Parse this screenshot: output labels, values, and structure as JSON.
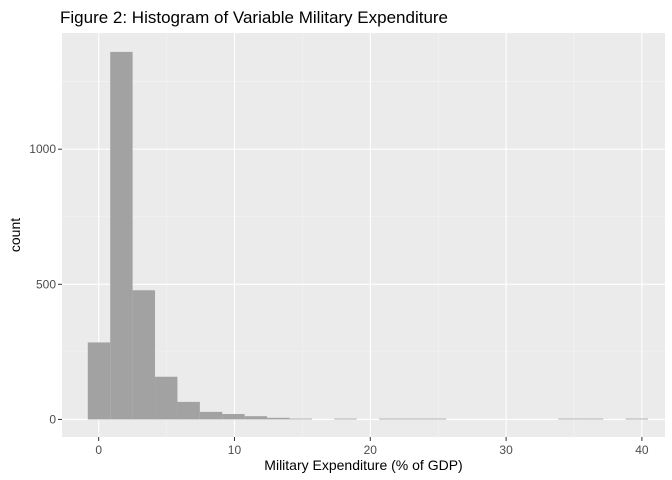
{
  "chart_data": {
    "type": "bar",
    "subtype": "histogram",
    "title": "Figure 2: Histogram of Variable Military Expenditure",
    "xlabel": "Military Expenditure (% of GDP)",
    "ylabel": "count",
    "xlim": [
      -2.7,
      41.7
    ],
    "ylim": [
      -65,
      1430
    ],
    "x_ticks": [
      0,
      10,
      20,
      30,
      40
    ],
    "y_ticks": [
      0,
      500,
      1000
    ],
    "x_tick_labels": [
      "0",
      "10",
      "20",
      "30",
      "40"
    ],
    "y_tick_labels": [
      "0",
      "500",
      "1000"
    ],
    "grid": true,
    "bar_color": "#a2a2a2",
    "panel_color": "#ebebeb",
    "bins": [
      {
        "x0": -0.8,
        "x1": 0.85,
        "count": 285
      },
      {
        "x0": 0.85,
        "x1": 2.5,
        "count": 1360
      },
      {
        "x0": 2.5,
        "x1": 4.15,
        "count": 478
      },
      {
        "x0": 4.15,
        "x1": 5.8,
        "count": 158
      },
      {
        "x0": 5.8,
        "x1": 7.45,
        "count": 65
      },
      {
        "x0": 7.45,
        "x1": 9.1,
        "count": 28
      },
      {
        "x0": 9.1,
        "x1": 10.75,
        "count": 20
      },
      {
        "x0": 10.75,
        "x1": 12.4,
        "count": 12
      },
      {
        "x0": 12.4,
        "x1": 14.05,
        "count": 6
      },
      {
        "x0": 14.05,
        "x1": 15.7,
        "count": 3
      },
      {
        "x0": 17.35,
        "x1": 19.0,
        "count": 2
      },
      {
        "x0": 20.65,
        "x1": 22.3,
        "count": 2
      },
      {
        "x0": 22.3,
        "x1": 23.95,
        "count": 2
      },
      {
        "x0": 23.95,
        "x1": 25.6,
        "count": 2
      },
      {
        "x0": 33.85,
        "x1": 35.5,
        "count": 2
      },
      {
        "x0": 35.5,
        "x1": 37.15,
        "count": 2
      },
      {
        "x0": 38.8,
        "x1": 40.45,
        "count": 2
      }
    ]
  }
}
